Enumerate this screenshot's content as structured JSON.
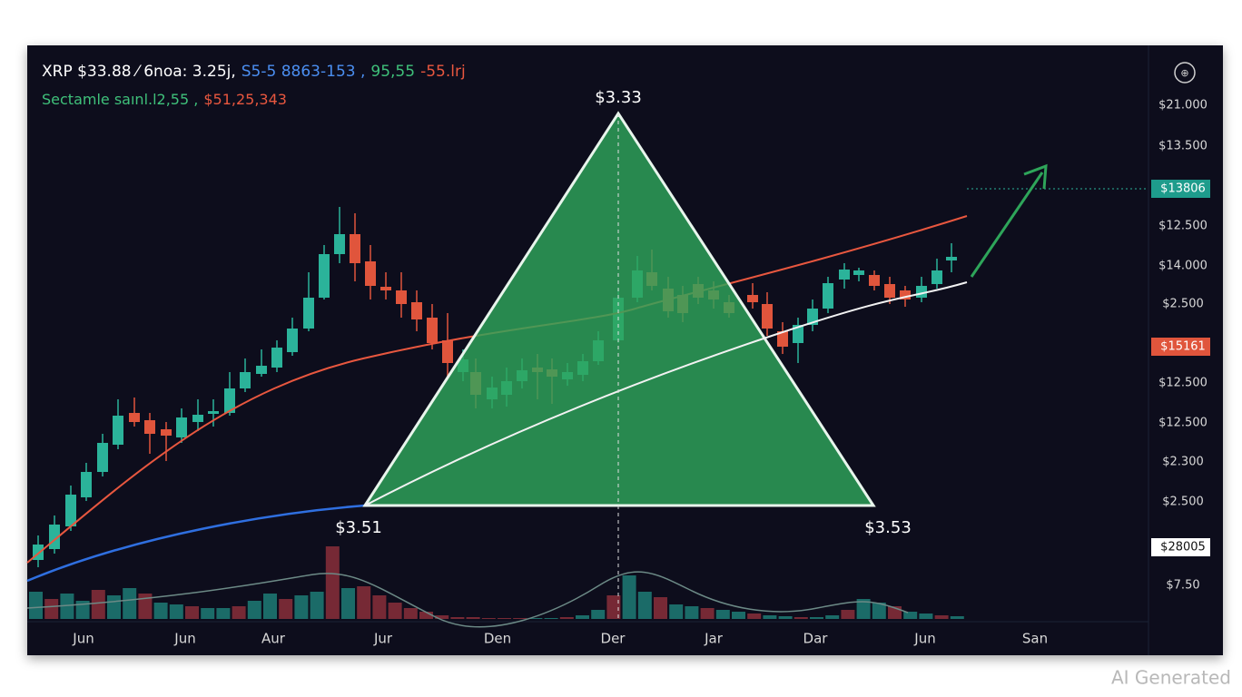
{
  "header": {
    "line1": [
      {
        "text": "XRP $33.88 ⁄ 6noa: 3.25j,",
        "color": "#ffffff"
      },
      {
        "text": "S5-5 8863-153 ,",
        "color": "#4b8ef0"
      },
      {
        "text": "95,55",
        "color": "#3fc07a"
      },
      {
        "text": "-55.lrj",
        "color": "#e8573f"
      }
    ],
    "line2": [
      {
        "text": "Sectamle saınl.l2,55 ,",
        "color": "#3fc07a"
      },
      {
        "text": "$51,25,343",
        "color": "#e8573f"
      }
    ]
  },
  "annotations": {
    "apex": "$3.33",
    "left": "$3.51",
    "right": "$3.53"
  },
  "y_axis": [
    "$21.000",
    "$13.500",
    "$13806",
    "$12.500",
    "$14.000",
    "$2.500",
    "$15161",
    "$12.500",
    "$12.500",
    "$2.300",
    "$2.500",
    "$28005",
    "$7.50"
  ],
  "x_axis": [
    "Jun",
    "Jun",
    "Aur",
    "Jur",
    "Den",
    "Der",
    "Jar",
    "Dar",
    "Jun",
    "San"
  ],
  "watermark": "AI Generated"
}
